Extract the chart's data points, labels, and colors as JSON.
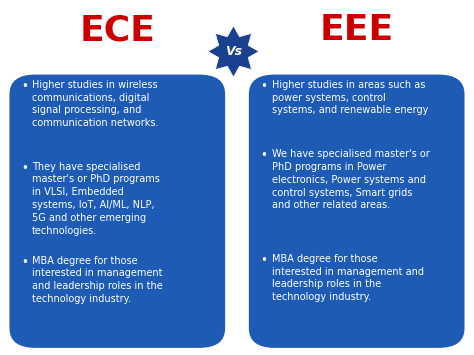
{
  "title_left": "ECE",
  "title_right": "EEE",
  "vs_text": "Vs",
  "title_color": "#CC0000",
  "panel_color": "#1e5bb5",
  "text_color": "#ffffff",
  "bg_color": "#ffffff",
  "vs_star_color": "#1a4090",
  "ece_bullets": [
    "Higher studies in wireless\ncommunications, digital\nsignal processing, and\ncommunication networks.",
    "They have specialised\nmaster's or PhD programs\nin VLSI, Embedded\nsystems, IoT, AI/ML, NLP,\n5G and other emerging\ntechnologies.",
    "MBA degree for those\ninterested in management\nand leadership roles in the\ntechnology industry."
  ],
  "eee_bullets": [
    "Higher studies in areas such as\npower systems, control\nsystems, and renewable energy",
    "We have specialised master's or\nPhD programs in Power\nelectronics, Power systems and\ncontrol systems, Smart grids\nand other related areas.",
    "MBA degree for those\ninterested in management and\nleadership roles in the\ntechnology industry."
  ],
  "fig_width": 4.74,
  "fig_height": 3.55,
  "dpi": 100
}
